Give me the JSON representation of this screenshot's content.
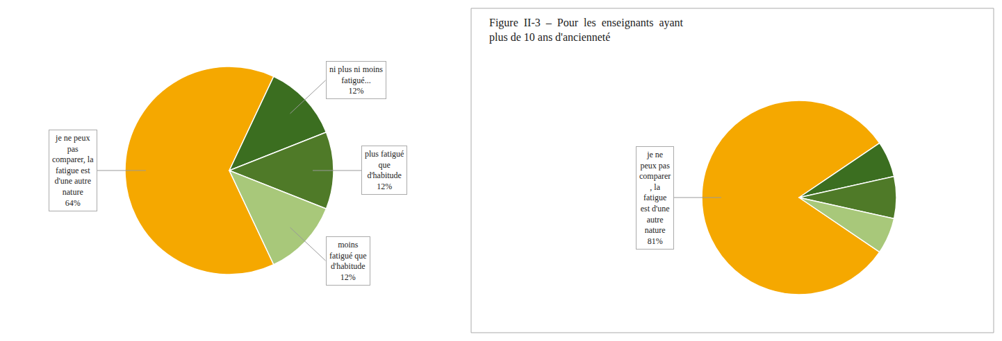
{
  "chart_data": [
    {
      "type": "pie",
      "values": [
        64,
        12,
        12,
        12
      ],
      "colors": [
        "#F5A800",
        "#3B6E20",
        "#4F7A28",
        "#A8C87A"
      ],
      "value_labels": [
        "je ne peux\npas\ncomparer, la\nfatigue est\nd'une autre\nnature\n64%",
        "ni plus ni moins\nfatigué...\n12%",
        "plus fatigué\nque\nd'habitude\n12%",
        "moins\nfatigué que\nd'habitude\n12%"
      ]
    },
    {
      "type": "pie",
      "title": "Figure  II-3  –  Pour  les  enseignants  ayant\nplus de 10 ans d'ancienneté",
      "values": [
        81,
        6,
        7,
        6
      ],
      "colors": [
        "#F5A800",
        "#3B6E20",
        "#4F7A28",
        "#A8C87A"
      ],
      "value_labels": [
        "je ne\npeux pas\ncomparer\n, la\nfatigue\nest d'une\nautre\nnature\n81%",
        null,
        null,
        null
      ]
    }
  ]
}
